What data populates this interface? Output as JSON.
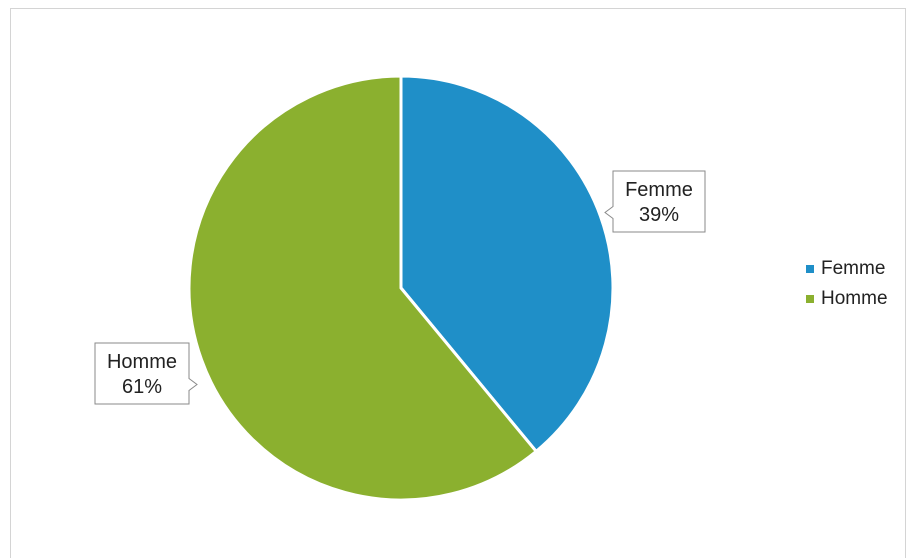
{
  "chart_data": {
    "type": "pie",
    "title": "",
    "slices": [
      {
        "label": "Femme",
        "value": 39,
        "display": "39%",
        "color": "#1f8fc8"
      },
      {
        "label": "Homme",
        "value": 61,
        "display": "61%",
        "color": "#8bb02f"
      }
    ],
    "legend": {
      "position": "right",
      "items": [
        "Femme",
        "Homme"
      ]
    },
    "data_labels": true,
    "start_angle": "12 o'clock, clockwise"
  }
}
